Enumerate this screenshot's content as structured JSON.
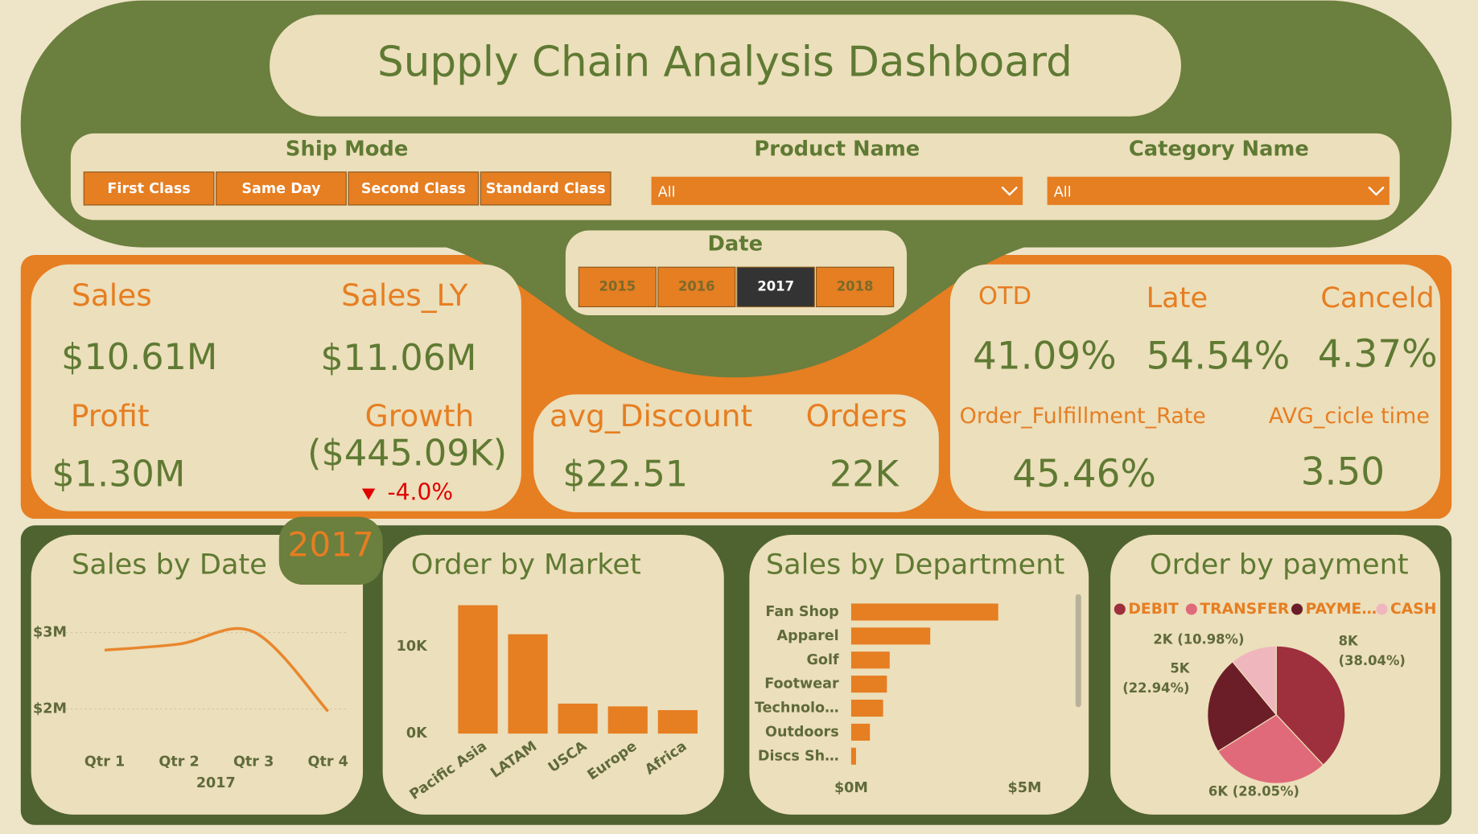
{
  "header": {
    "title": "Supply Chain Analysis Dashboard"
  },
  "filters": {
    "ship_mode": {
      "label": "Ship Mode",
      "options": [
        "First Class",
        "Same Day",
        "Second Class",
        "Standard Class"
      ]
    },
    "product_name": {
      "label": "Product Name",
      "value": "All"
    },
    "category_name": {
      "label": "Category Name",
      "value": "All"
    },
    "date": {
      "label": "Date",
      "options": [
        "2015",
        "2016",
        "2017",
        "2018"
      ],
      "selected": "2017"
    }
  },
  "kpis": {
    "sales": {
      "label": "Sales",
      "value": "$10.61M"
    },
    "sales_ly": {
      "label": "Sales_LY",
      "value": "$11.06M"
    },
    "profit": {
      "label": "Profit",
      "value": "$1.30M"
    },
    "growth": {
      "label": "Growth",
      "value": "($445.09K)",
      "change": "-4.0%"
    },
    "avg_discount": {
      "label": "avg_Discount",
      "value": "$22.51"
    },
    "orders": {
      "label": "Orders",
      "value": "22K"
    },
    "otd": {
      "label": "OTD",
      "value": "41.09%"
    },
    "late": {
      "label": "Late",
      "value": "54.54%"
    },
    "canceld": {
      "label": "Canceld",
      "value": "4.37%"
    },
    "fulfillment": {
      "label": "Order_Fulfillment_Rate",
      "value": "45.46%"
    },
    "cycle": {
      "label": "AVG_cicle time",
      "value": "3.50"
    }
  },
  "badge": "2017",
  "chart_data": [
    {
      "type": "line",
      "title": "Sales by Date",
      "x_label": "2017",
      "categories": [
        "Qtr 1",
        "Qtr 2",
        "Qtr 3",
        "Qtr 4"
      ],
      "values": [
        2770000,
        2850000,
        3010000,
        1970000
      ],
      "color": "#e8872e",
      "ylim": [
        1530000,
        3380000
      ],
      "yticks": [
        {
          "value": 2000000,
          "label": "$2M"
        },
        {
          "value": 3000000,
          "label": "$3M"
        }
      ],
      "grid": true
    },
    {
      "type": "bar",
      "title": "Order by Market",
      "categories": [
        "Pacific Asia",
        "LATAM",
        "USCA",
        "Europe",
        "Africa"
      ],
      "values": [
        14730,
        11400,
        3440,
        3120,
        2690
      ],
      "color": "#e67e22",
      "ylim": [
        0,
        16000
      ],
      "yticks": [
        {
          "value": 0,
          "label": "0K"
        },
        {
          "value": 10000,
          "label": "10K"
        }
      ]
    },
    {
      "type": "hbar",
      "title": "Sales by Department",
      "categories": [
        "Fan Shop",
        "Apparel",
        "Golf",
        "Footwear",
        "Technolo…",
        "Outdoors",
        "Discs Sh…"
      ],
      "values": [
        4240000,
        2280000,
        1110000,
        1030000,
        920000,
        540000,
        140000
      ],
      "color": "#e67e22",
      "xlim": [
        0,
        5000000
      ],
      "xticks": [
        {
          "value": 0,
          "label": "$0M"
        },
        {
          "value": 5000000,
          "label": "$5M"
        }
      ]
    },
    {
      "type": "pie",
      "title": "Order by payment",
      "categories": [
        "DEBIT",
        "TRANSFER",
        "PAYME…",
        "CASH"
      ],
      "values": [
        38.04,
        28.05,
        22.94,
        10.98
      ],
      "value_labels": [
        "8K (38.04%)",
        "6K (28.05%)",
        "5K (22.94%)",
        "2K (10.98%)"
      ],
      "colors": [
        "#9e2f3c",
        "#e06a7a",
        "#6b1e28",
        "#f0b6bd"
      ]
    }
  ]
}
